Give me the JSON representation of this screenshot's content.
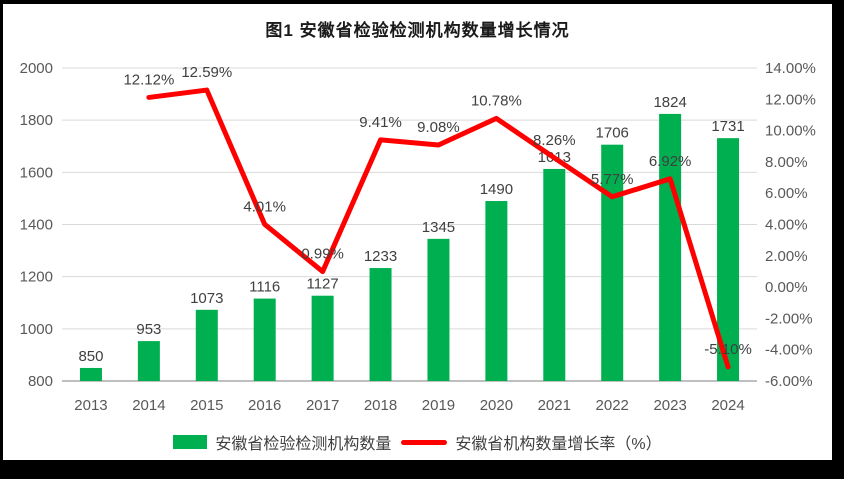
{
  "page": {
    "title": "图1 安徽省检验检测机构数量增长情况"
  },
  "chart_data": {
    "type": "bar",
    "subtype": "bar+line combo",
    "title": "图1 安徽省检验检测机构数量增长情况",
    "categories": [
      "2013",
      "2014",
      "2015",
      "2016",
      "2017",
      "2018",
      "2019",
      "2020",
      "2021",
      "2022",
      "2023",
      "2024"
    ],
    "series": [
      {
        "name": "安徽省检验检测机构数量",
        "type": "bar",
        "axis": "left",
        "color": "#00B050",
        "values": [
          850,
          953,
          1073,
          1116,
          1127,
          1233,
          1345,
          1490,
          1613,
          1706,
          1824,
          1731
        ]
      },
      {
        "name": "安徽省机构数量增长率（%）",
        "type": "line",
        "axis": "right",
        "color": "#FF0000",
        "values": [
          null,
          12.12,
          12.59,
          4.01,
          0.99,
          9.41,
          9.08,
          10.78,
          8.26,
          5.77,
          6.92,
          -5.1
        ]
      }
    ],
    "left_axis": {
      "min": 800,
      "max": 2000,
      "step": 200,
      "tick_labels": [
        "800",
        "1000",
        "1200",
        "1400",
        "1600",
        "1800",
        "2000"
      ]
    },
    "right_axis": {
      "min": -6,
      "max": 14,
      "step": 2,
      "format": "0.00%",
      "tick_labels": [
        "-6.00%",
        "-4.00%",
        "-2.00%",
        "0.00%",
        "2.00%",
        "4.00%",
        "6.00%",
        "8.00%",
        "10.00%",
        "12.00%",
        "14.00%"
      ]
    },
    "grid": true,
    "legend_position": "bottom",
    "colors": {
      "bar": "#00B050",
      "line": "#FF0000",
      "gridline": "#D9D9D9",
      "axis_line": "#BFBFBF",
      "axis_text": "#595959",
      "data_label_text": "#404040",
      "frame": "#000000",
      "background": "#FFFFFF"
    }
  }
}
